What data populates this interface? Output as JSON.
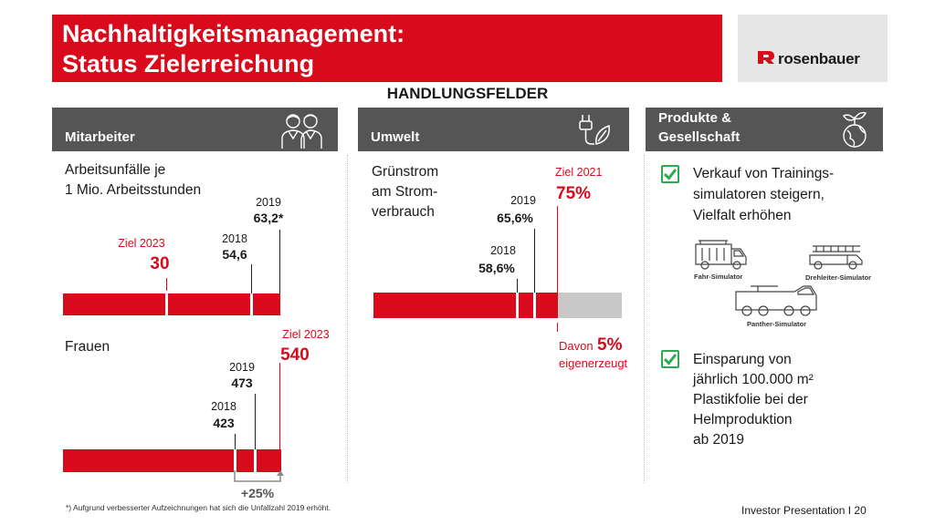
{
  "title": {
    "line1": "Nachhaltigkeitsmanagement:",
    "line2": "Status Zielerreichung"
  },
  "logo": {
    "text": "rosenbauer"
  },
  "section_heading": "HANDLUNGSFELDER",
  "columns": {
    "mitarbeiter": {
      "header": "Mitarbeiter",
      "icon": "people-icon",
      "unfaelle": {
        "label_line1": "Arbeitsunfälle je",
        "label_line2": "1 Mio. Arbeitsstunden",
        "ziel_label": "Ziel 2023",
        "ziel_value": "30",
        "y2018_label": "2018",
        "y2018_value": "54,6",
        "y2019_label": "2019",
        "y2019_value": "63,2*"
      },
      "frauen": {
        "label": "Frauen",
        "ziel_label": "Ziel 2023",
        "ziel_value": "540",
        "y2019_label": "2019",
        "y2019_value": "473",
        "y2018_label": "2018",
        "y2018_value": "423",
        "increase": "+25%"
      }
    },
    "umwelt": {
      "header": "Umwelt",
      "icon": "plug-leaf-icon",
      "label_line1": "Grünstrom",
      "label_line2": "am Strom-",
      "label_line3": "verbrauch",
      "ziel_label": "Ziel 2021",
      "ziel_value": "75%",
      "y2019_label": "2019",
      "y2019_value": "65,6%",
      "y2018_label": "2018",
      "y2018_value": "58,6%",
      "davon_prefix": "Davon",
      "davon_value": "5%",
      "davon_suffix": "eigenerzeugt"
    },
    "produkte": {
      "header_line1": "Produkte &",
      "header_line2": "Gesellschaft",
      "icon": "globe-plant-icon",
      "item1": {
        "line1": "Verkauf von Trainings-",
        "line2": "simulatoren steigern,",
        "line3": "Vielfalt erhöhen"
      },
      "simulators": {
        "fahr": "Fahr-Simulator",
        "drehleiter": "Drehleiter-Simulator",
        "panther": "Panther-Simulator"
      },
      "item2": {
        "line1": "Einsparung von",
        "line2": "jährlich 100.000 m²",
        "line3": "Plastikfolie bei der",
        "line4": "Helmproduktion",
        "line5": "ab 2019"
      }
    }
  },
  "footnote": "*) Aufgrund verbesserter Aufzeichnungen hat sich die Unfallzahl 2019 erhöht.",
  "page_footer": "Investor Presentation I 20",
  "colors": {
    "accent": "#d90a1b",
    "header_grey": "#555555",
    "target_grey": "#c8c8c8",
    "check_green": "#2fa84f"
  }
}
